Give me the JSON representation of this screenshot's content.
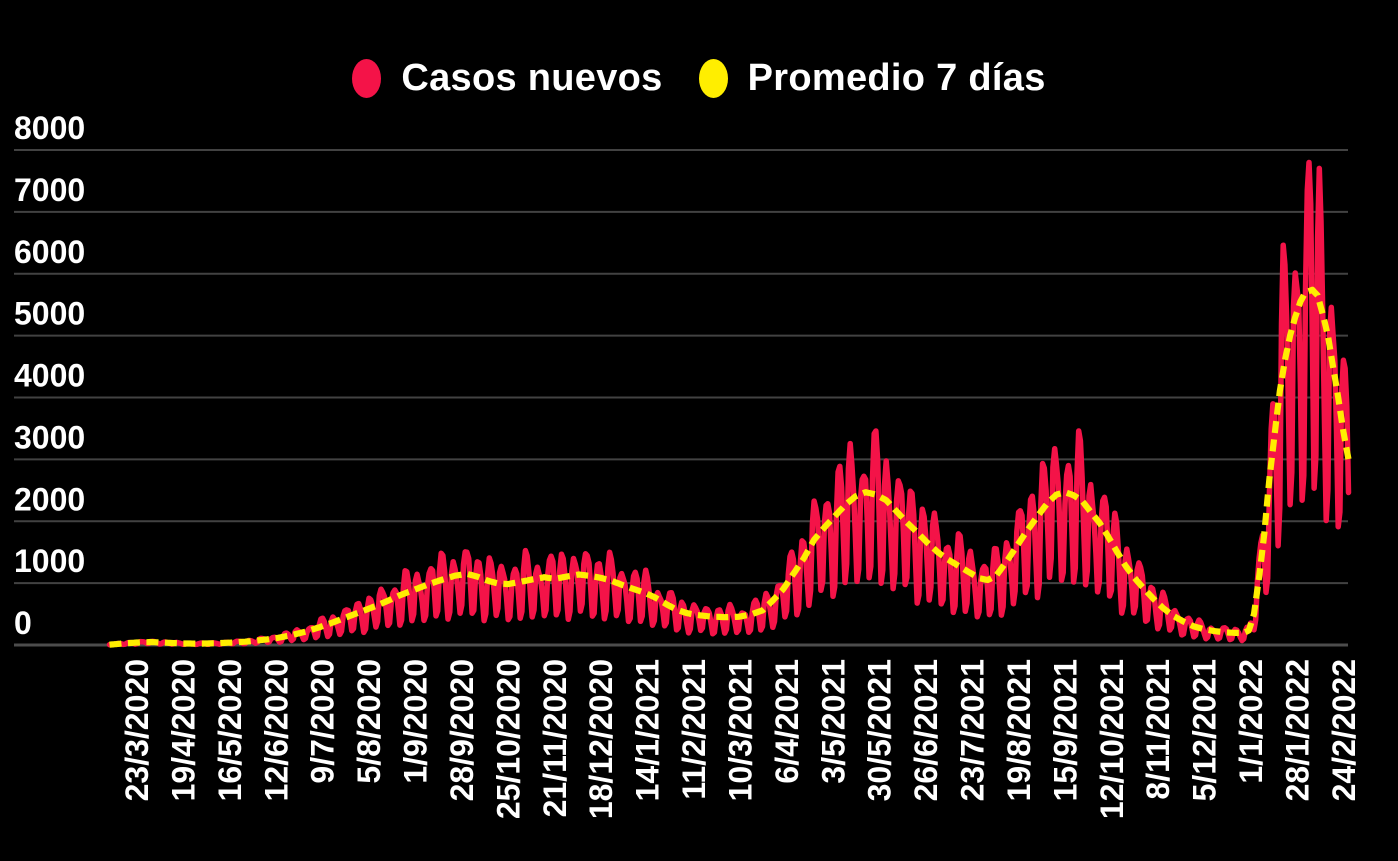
{
  "legend": {
    "items": [
      {
        "label": "Casos nuevos",
        "color": "#f41348",
        "marker": "dot"
      },
      {
        "label": "Promedio 7 días",
        "color": "#ffee00",
        "marker": "dot"
      }
    ]
  },
  "y_axis": {
    "tick_values": [
      0,
      1000,
      2000,
      3000,
      4000,
      5000,
      6000,
      7000,
      8000
    ],
    "tick_labels": [
      "0",
      "1000",
      "2000",
      "3000",
      "4000",
      "5000",
      "6000",
      "7000",
      "8000"
    ]
  },
  "x_axis": {
    "tick_labels": [
      "23/3/2020",
      "19/4/2020",
      "16/5/2020",
      "12/6/2020",
      "9/7/2020",
      "5/8/2020",
      "1/9/2020",
      "28/9/2020",
      "25/10/2020",
      "21/11/2020",
      "18/12/2020",
      "14/1/2021",
      "11/2/2021",
      "10/3/2021",
      "6/4/2021",
      "3/5/2021",
      "30/5/2021",
      "26/6/2021",
      "23/7/2021",
      "19/8/2021",
      "15/9/2021",
      "12/10/2021",
      "8/11/2021",
      "5/12/2021",
      "1/1/2022",
      "28/1/2022",
      "24/2/2022"
    ]
  },
  "colors": {
    "background": "#000000",
    "grid": "#424242",
    "baseline": "#4c4c4c",
    "text": "#ffffff",
    "casos_nuevos": "#f41348",
    "promedio_7_dias": "#ffee00"
  },
  "chart_data": {
    "type": "line",
    "title": "",
    "ylim": [
      0,
      8000
    ],
    "grid": "horizontal",
    "legend_position": "top-center",
    "x_unit": "days (day 0 = line start, ~16 days before first tick label)",
    "total_days": 721,
    "first_tick_day": 16,
    "tick_interval_days": 27,
    "series": [
      {
        "name": "Promedio 7 días",
        "style": "dashed",
        "color": "#ffee00",
        "anchor_points_day_value": [
          [
            0,
            5
          ],
          [
            8,
            25
          ],
          [
            16,
            40
          ],
          [
            24,
            48
          ],
          [
            32,
            38
          ],
          [
            42,
            25
          ],
          [
            52,
            22
          ],
          [
            62,
            28
          ],
          [
            72,
            40
          ],
          [
            82,
            60
          ],
          [
            90,
            85
          ],
          [
            98,
            115
          ],
          [
            106,
            160
          ],
          [
            114,
            215
          ],
          [
            122,
            285
          ],
          [
            130,
            365
          ],
          [
            138,
            450
          ],
          [
            146,
            535
          ],
          [
            154,
            620
          ],
          [
            162,
            715
          ],
          [
            170,
            815
          ],
          [
            178,
            900
          ],
          [
            186,
            985
          ],
          [
            194,
            1060
          ],
          [
            201,
            1120
          ],
          [
            208,
            1150
          ],
          [
            214,
            1105
          ],
          [
            220,
            1040
          ],
          [
            226,
            995
          ],
          [
            232,
            985
          ],
          [
            239,
            1020
          ],
          [
            246,
            1060
          ],
          [
            253,
            1095
          ],
          [
            259,
            1070
          ],
          [
            266,
            1105
          ],
          [
            273,
            1140
          ],
          [
            280,
            1115
          ],
          [
            286,
            1085
          ],
          [
            292,
            1040
          ],
          [
            298,
            975
          ],
          [
            305,
            905
          ],
          [
            312,
            840
          ],
          [
            318,
            760
          ],
          [
            324,
            660
          ],
          [
            330,
            570
          ],
          [
            336,
            515
          ],
          [
            342,
            485
          ],
          [
            350,
            460
          ],
          [
            358,
            450
          ],
          [
            366,
            455
          ],
          [
            374,
            500
          ],
          [
            380,
            560
          ],
          [
            386,
            720
          ],
          [
            392,
            900
          ],
          [
            398,
            1150
          ],
          [
            404,
            1400
          ],
          [
            410,
            1700
          ],
          [
            416,
            1900
          ],
          [
            422,
            2080
          ],
          [
            428,
            2260
          ],
          [
            434,
            2400
          ],
          [
            440,
            2470
          ],
          [
            446,
            2430
          ],
          [
            452,
            2340
          ],
          [
            458,
            2160
          ],
          [
            464,
            1980
          ],
          [
            470,
            1820
          ],
          [
            476,
            1650
          ],
          [
            482,
            1500
          ],
          [
            488,
            1380
          ],
          [
            494,
            1280
          ],
          [
            500,
            1180
          ],
          [
            506,
            1080
          ],
          [
            511,
            1050
          ],
          [
            516,
            1120
          ],
          [
            522,
            1350
          ],
          [
            528,
            1600
          ],
          [
            534,
            1850
          ],
          [
            540,
            2080
          ],
          [
            546,
            2300
          ],
          [
            551,
            2430
          ],
          [
            556,
            2470
          ],
          [
            561,
            2420
          ],
          [
            566,
            2330
          ],
          [
            571,
            2150
          ],
          [
            576,
            1980
          ],
          [
            581,
            1760
          ],
          [
            586,
            1520
          ],
          [
            591,
            1290
          ],
          [
            596,
            1100
          ],
          [
            601,
            940
          ],
          [
            607,
            760
          ],
          [
            613,
            600
          ],
          [
            619,
            470
          ],
          [
            625,
            380
          ],
          [
            631,
            300
          ],
          [
            637,
            255
          ],
          [
            643,
            225
          ],
          [
            649,
            205
          ],
          [
            655,
            195
          ],
          [
            660,
            195
          ],
          [
            663,
            235
          ],
          [
            666,
            500
          ],
          [
            669,
            1100
          ],
          [
            672,
            1800
          ],
          [
            675,
            2700
          ],
          [
            678,
            3400
          ],
          [
            681,
            4100
          ],
          [
            684,
            4600
          ],
          [
            687,
            5000
          ],
          [
            690,
            5300
          ],
          [
            693,
            5550
          ],
          [
            696,
            5700
          ],
          [
            700,
            5740
          ],
          [
            703,
            5650
          ],
          [
            706,
            5350
          ],
          [
            709,
            5000
          ],
          [
            712,
            4500
          ],
          [
            715,
            4000
          ],
          [
            718,
            3450
          ],
          [
            721,
            3000
          ]
        ]
      },
      {
        "name": "Casos nuevos",
        "style": "solid",
        "color": "#f41348",
        "derived_from_average": true,
        "derivation_note": "daily = average(day) * weekly_pattern[day%7] * (1 + a1*sin(f1*day) + a2*sin(f2*day + p2)); min 4",
        "weekly_pattern": [
          0.78,
          0.43,
          0.52,
          1.08,
          1.28,
          1.24,
          1.1
        ],
        "noise": {
          "a1": 0.09,
          "f1": 0.37,
          "a2": 0.06,
          "f2": 1.17,
          "p2": 1.0
        }
      }
    ]
  }
}
